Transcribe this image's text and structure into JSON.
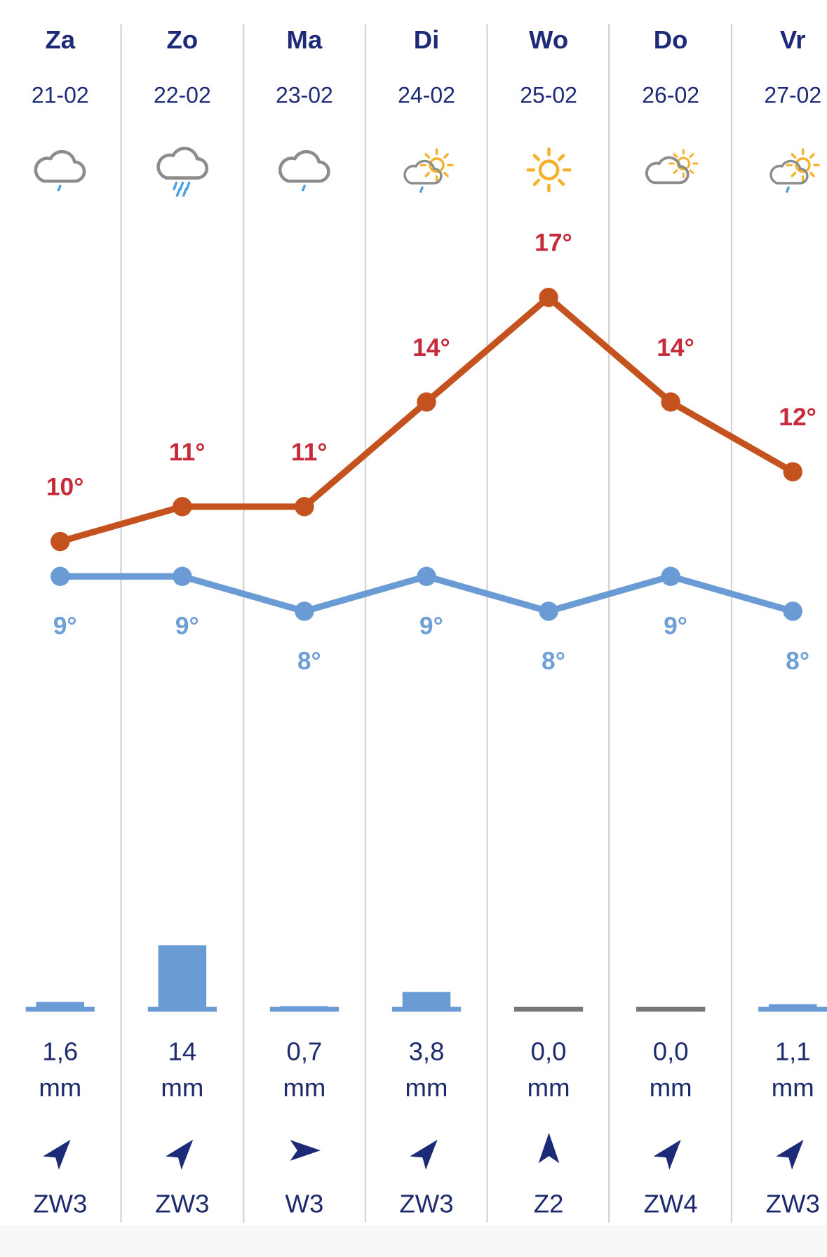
{
  "days": [
    "Za",
    "Zo",
    "Ma",
    "Di",
    "Wo",
    "Do",
    "Vr"
  ],
  "dates": [
    "21-02",
    "22-02",
    "23-02",
    "24-02",
    "25-02",
    "26-02",
    "27-02"
  ],
  "high": {
    "color": "#c4521f",
    "values": [
      10,
      11,
      11,
      14,
      17,
      14,
      12
    ],
    "value_labels": [
      "10°",
      "11°",
      "11°",
      "14°",
      "17°",
      "14°",
      "12°"
    ]
  },
  "low": {
    "color": "#6a9bd4",
    "values": [
      9,
      9,
      8,
      9,
      8,
      9,
      8
    ],
    "value_labels": [
      "9°",
      "9°",
      "8°",
      "9°",
      "8°",
      "9°",
      "8°"
    ]
  },
  "precipitation": {
    "unit": "mm",
    "values": [
      1.6,
      14,
      0.7,
      3.8,
      0,
      0,
      1.1
    ],
    "value_labels": [
      "1,6",
      "14",
      "0,7",
      "3,8",
      "0,0",
      "0,0",
      "1,1"
    ]
  },
  "wind": [
    "ZW3",
    "ZW3",
    "W3",
    "ZW3",
    "Z2",
    "ZW4",
    "ZW3"
  ]
}
